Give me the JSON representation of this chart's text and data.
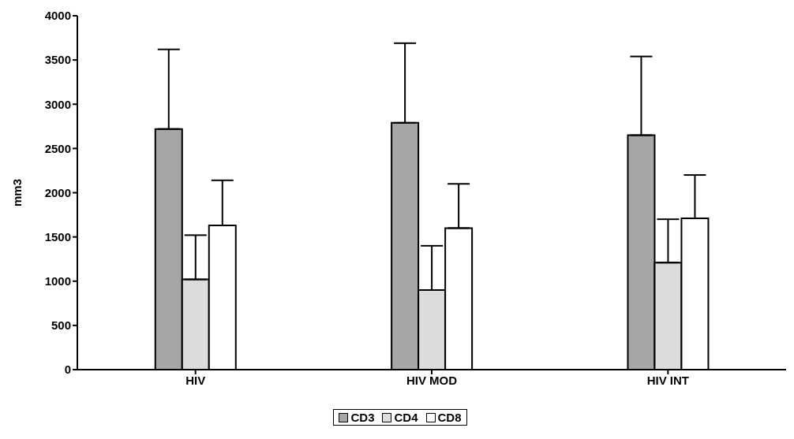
{
  "chart_data": {
    "type": "bar",
    "ylabel": "mm3",
    "categories": [
      "HIV",
      "HIV MOD",
      "HIV INT"
    ],
    "series": [
      {
        "name": "CD3",
        "color": "#a6a6a6",
        "values": [
          2720,
          2790,
          2650
        ],
        "errors": [
          [
            2720,
            3620
          ],
          [
            2790,
            3690
          ],
          [
            2650,
            3540
          ]
        ]
      },
      {
        "name": "CD4",
        "color": "#dcdcdc",
        "values": [
          1020,
          900,
          1210
        ],
        "errors": [
          [
            1020,
            1520
          ],
          [
            900,
            1400
          ],
          [
            1210,
            1700
          ]
        ]
      },
      {
        "name": "CD8",
        "color": "#ffffff",
        "values": [
          1630,
          1600,
          1710
        ],
        "errors": [
          [
            1630,
            2140
          ],
          [
            1600,
            2100
          ],
          [
            1710,
            2200
          ]
        ]
      }
    ],
    "ylim": [
      0,
      4000
    ],
    "yticks": [
      0,
      500,
      1000,
      1500,
      2000,
      2500,
      3000,
      3500,
      4000
    ],
    "grid": false,
    "legend": "bottom"
  }
}
